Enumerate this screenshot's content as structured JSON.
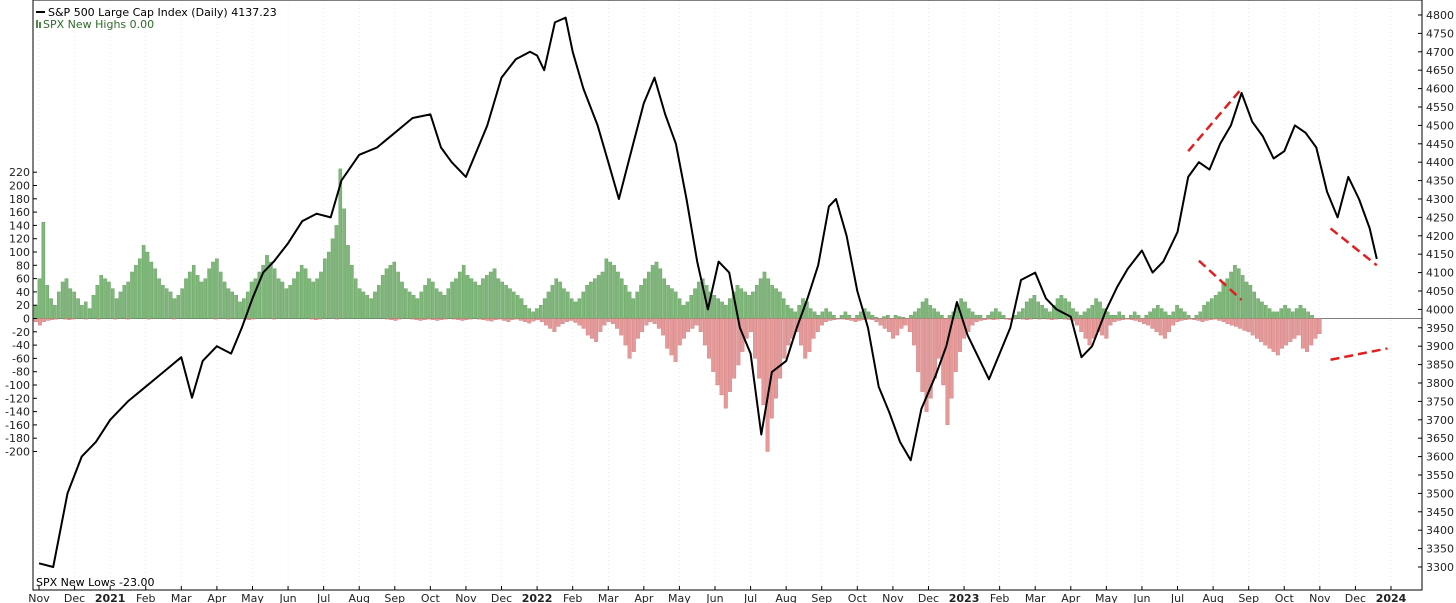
{
  "chart_data": {
    "type": "bar",
    "legend": {
      "spx_line": "S&P 500 Large Cap Index (Daily) 4137.23",
      "new_highs": "SPX New Highs 0.00",
      "new_lows": "SPX New Lows -23.00"
    },
    "colors": {
      "line": "#000000",
      "highs": "#7fb77a",
      "highs_dark": "#4f8d4a",
      "lows": "#e59a9a",
      "lows_dark": "#c46a6a",
      "annotation": "#e02020",
      "grid": "#d8d8d8"
    },
    "x_labels": [
      {
        "label": "Nov",
        "bold": false
      },
      {
        "label": "Dec",
        "bold": false
      },
      {
        "label": "2021",
        "bold": true
      },
      {
        "label": "Feb",
        "bold": false
      },
      {
        "label": "Mar",
        "bold": false
      },
      {
        "label": "Apr",
        "bold": false
      },
      {
        "label": "May",
        "bold": false
      },
      {
        "label": "Jun",
        "bold": false
      },
      {
        "label": "Jul",
        "bold": false
      },
      {
        "label": "Aug",
        "bold": false
      },
      {
        "label": "Sep",
        "bold": false
      },
      {
        "label": "Oct",
        "bold": false
      },
      {
        "label": "Nov",
        "bold": false
      },
      {
        "label": "Dec",
        "bold": false
      },
      {
        "label": "2022",
        "bold": true
      },
      {
        "label": "Feb",
        "bold": false
      },
      {
        "label": "Mar",
        "bold": false
      },
      {
        "label": "Apr",
        "bold": false
      },
      {
        "label": "May",
        "bold": false
      },
      {
        "label": "Jun",
        "bold": false
      },
      {
        "label": "Jul",
        "bold": false
      },
      {
        "label": "Aug",
        "bold": false
      },
      {
        "label": "Sep",
        "bold": false
      },
      {
        "label": "Oct",
        "bold": false
      },
      {
        "label": "Nov",
        "bold": false
      },
      {
        "label": "Dec",
        "bold": false
      },
      {
        "label": "2023",
        "bold": true
      },
      {
        "label": "Feb",
        "bold": false
      },
      {
        "label": "Mar",
        "bold": false
      },
      {
        "label": "Apr",
        "bold": false
      },
      {
        "label": "May",
        "bold": false
      },
      {
        "label": "Jun",
        "bold": false
      },
      {
        "label": "Jul",
        "bold": false
      },
      {
        "label": "Aug",
        "bold": false
      },
      {
        "label": "Sep",
        "bold": false
      },
      {
        "label": "Oct",
        "bold": false
      },
      {
        "label": "Nov",
        "bold": false
      },
      {
        "label": "Dec",
        "bold": false
      },
      {
        "label": "2024",
        "bold": true
      }
    ],
    "left_axis": {
      "ylim": [
        -200,
        225
      ],
      "ticks": [
        220,
        200,
        180,
        160,
        140,
        120,
        100,
        80,
        60,
        40,
        20,
        0,
        -20,
        -40,
        -60,
        -80,
        -100,
        -120,
        -140,
        -160,
        -180,
        -200
      ]
    },
    "right_axis": {
      "ylim": [
        3270,
        4800
      ],
      "ticks": [
        4800,
        4750,
        4700,
        4650,
        4600,
        4550,
        4500,
        4450,
        4400,
        4350,
        4300,
        4250,
        4200,
        4150,
        4100,
        4050,
        4000,
        3950,
        3900,
        3850,
        3800,
        3750,
        3700,
        3650,
        3600,
        3550,
        3500,
        3450,
        3400,
        3350,
        3300
      ]
    },
    "spx_series": {
      "name": "S&P 500 Large Cap Index (Daily)",
      "points": [
        [
          0,
          3310
        ],
        [
          0.4,
          3300
        ],
        [
          0.8,
          3500
        ],
        [
          1.2,
          3600
        ],
        [
          1.6,
          3640
        ],
        [
          2.0,
          3700
        ],
        [
          2.5,
          3750
        ],
        [
          3.0,
          3790
        ],
        [
          3.5,
          3830
        ],
        [
          4.0,
          3870
        ],
        [
          4.3,
          3760
        ],
        [
          4.6,
          3860
        ],
        [
          5.0,
          3900
        ],
        [
          5.4,
          3880
        ],
        [
          5.7,
          3950
        ],
        [
          6.0,
          4030
        ],
        [
          6.3,
          4100
        ],
        [
          6.6,
          4130
        ],
        [
          7.0,
          4180
        ],
        [
          7.4,
          4240
        ],
        [
          7.8,
          4260
        ],
        [
          8.2,
          4250
        ],
        [
          8.5,
          4350
        ],
        [
          9.0,
          4420
        ],
        [
          9.5,
          4440
        ],
        [
          10.0,
          4480
        ],
        [
          10.5,
          4520
        ],
        [
          11.0,
          4530
        ],
        [
          11.3,
          4440
        ],
        [
          11.6,
          4400
        ],
        [
          12.0,
          4360
        ],
        [
          12.3,
          4430
        ],
        [
          12.6,
          4500
        ],
        [
          13.0,
          4630
        ],
        [
          13.4,
          4680
        ],
        [
          13.8,
          4700
        ],
        [
          14.0,
          4690
        ],
        [
          14.2,
          4650
        ],
        [
          14.5,
          4780
        ],
        [
          14.8,
          4793
        ],
        [
          15.0,
          4700
        ],
        [
          15.3,
          4600
        ],
        [
          15.7,
          4500
        ],
        [
          16.0,
          4400
        ],
        [
          16.3,
          4300
        ],
        [
          16.7,
          4450
        ],
        [
          17.0,
          4560
        ],
        [
          17.3,
          4630
        ],
        [
          17.6,
          4530
        ],
        [
          17.9,
          4450
        ],
        [
          18.2,
          4300
        ],
        [
          18.5,
          4130
        ],
        [
          18.8,
          4000
        ],
        [
          19.1,
          4130
        ],
        [
          19.4,
          4100
        ],
        [
          19.7,
          3950
        ],
        [
          20.0,
          3880
        ],
        [
          20.3,
          3660
        ],
        [
          20.6,
          3830
        ],
        [
          21.0,
          3860
        ],
        [
          21.3,
          3950
        ],
        [
          21.6,
          4030
        ],
        [
          21.9,
          4120
        ],
        [
          22.2,
          4280
        ],
        [
          22.4,
          4300
        ],
        [
          22.7,
          4200
        ],
        [
          23.0,
          4050
        ],
        [
          23.3,
          3950
        ],
        [
          23.6,
          3790
        ],
        [
          23.9,
          3720
        ],
        [
          24.2,
          3640
        ],
        [
          24.5,
          3590
        ],
        [
          24.8,
          3730
        ],
        [
          25.2,
          3820
        ],
        [
          25.5,
          3900
        ],
        [
          25.8,
          4020
        ],
        [
          26.1,
          3930
        ],
        [
          26.4,
          3870
        ],
        [
          26.7,
          3810
        ],
        [
          27.0,
          3880
        ],
        [
          27.3,
          3950
        ],
        [
          27.6,
          4080
        ],
        [
          28.0,
          4100
        ],
        [
          28.3,
          4030
        ],
        [
          28.6,
          4000
        ],
        [
          29.0,
          3980
        ],
        [
          29.3,
          3870
        ],
        [
          29.6,
          3900
        ],
        [
          30.0,
          4000
        ],
        [
          30.3,
          4060
        ],
        [
          30.6,
          4110
        ],
        [
          31.0,
          4160
        ],
        [
          31.3,
          4100
        ],
        [
          31.6,
          4130
        ],
        [
          32.0,
          4210
        ],
        [
          32.3,
          4360
        ],
        [
          32.6,
          4400
        ],
        [
          32.9,
          4380
        ],
        [
          33.2,
          4450
        ],
        [
          33.5,
          4500
        ],
        [
          33.8,
          4588
        ],
        [
          34.1,
          4510
        ],
        [
          34.4,
          4470
        ],
        [
          34.7,
          4410
        ],
        [
          35.0,
          4430
        ],
        [
          35.3,
          4500
        ],
        [
          35.6,
          4480
        ],
        [
          35.9,
          4440
        ],
        [
          36.2,
          4320
        ],
        [
          36.5,
          4250
        ],
        [
          36.8,
          4360
        ],
        [
          37.1,
          4300
        ],
        [
          37.4,
          4220
        ],
        [
          37.6,
          4137
        ]
      ]
    },
    "new_highs_values": [
      20,
      60,
      145,
      50,
      30,
      20,
      40,
      55,
      60,
      45,
      40,
      30,
      20,
      25,
      15,
      35,
      50,
      65,
      60,
      55,
      45,
      30,
      40,
      50,
      55,
      70,
      80,
      90,
      110,
      100,
      85,
      75,
      60,
      50,
      45,
      40,
      30,
      35,
      45,
      60,
      70,
      80,
      65,
      55,
      60,
      75,
      85,
      90,
      70,
      55,
      45,
      40,
      35,
      25,
      30,
      40,
      55,
      60,
      70,
      80,
      95,
      85,
      75,
      60,
      55,
      45,
      50,
      60,
      70,
      80,
      75,
      60,
      55,
      60,
      70,
      90,
      100,
      120,
      140,
      225,
      165,
      110,
      80,
      60,
      45,
      40,
      35,
      30,
      40,
      50,
      65,
      75,
      80,
      85,
      70,
      55,
      45,
      40,
      35,
      30,
      40,
      50,
      60,
      55,
      45,
      40,
      35,
      45,
      55,
      60,
      70,
      80,
      65,
      60,
      55,
      50,
      60,
      65,
      70,
      75,
      60,
      55,
      50,
      45,
      40,
      35,
      30,
      20,
      15,
      10,
      15,
      20,
      30,
      40,
      50,
      60,
      55,
      45,
      40,
      30,
      25,
      30,
      40,
      50,
      55,
      60,
      65,
      70,
      90,
      85,
      80,
      70,
      60,
      50,
      40,
      30,
      40,
      50,
      60,
      70,
      80,
      85,
      75,
      60,
      50,
      45,
      40,
      30,
      20,
      25,
      35,
      45,
      55,
      60,
      50,
      40,
      35,
      30,
      25,
      20,
      30,
      40,
      50,
      45,
      40,
      35,
      40,
      50,
      60,
      70,
      60,
      50,
      45,
      40,
      30,
      20,
      15,
      10,
      20,
      30,
      25,
      15,
      10,
      5,
      10,
      15,
      10,
      5,
      0,
      5,
      10,
      5,
      0,
      5,
      10,
      15,
      10,
      5,
      2,
      0,
      3,
      5,
      0,
      5,
      3,
      2,
      0,
      5,
      10,
      15,
      25,
      30,
      20,
      15,
      10,
      5,
      0,
      5,
      10,
      20,
      30,
      25,
      15,
      10,
      5,
      5,
      0,
      5,
      10,
      15,
      10,
      5,
      0,
      0,
      5,
      10,
      15,
      25,
      30,
      35,
      25,
      20,
      15,
      10,
      20,
      30,
      35,
      30,
      25,
      15,
      10,
      5,
      10,
      15,
      20,
      30,
      25,
      15,
      10,
      5,
      5,
      10,
      5,
      0,
      5,
      10,
      5,
      0,
      5,
      10,
      15,
      20,
      15,
      10,
      5,
      10,
      20,
      15,
      10,
      5,
      0,
      5,
      10,
      20,
      25,
      30,
      35,
      40,
      55,
      60,
      70,
      80,
      75,
      65,
      55,
      50,
      40,
      30,
      25,
      20,
      15,
      10,
      10,
      15,
      20,
      15,
      10,
      15,
      20,
      15,
      10,
      5,
      0,
      0
    ],
    "new_lows_values": [
      -5,
      -10,
      -5,
      -3,
      -2,
      -1,
      0,
      -1,
      -2,
      -1,
      0,
      0,
      -1,
      0,
      0,
      -1,
      0,
      0,
      0,
      -1,
      0,
      0,
      -1,
      0,
      0,
      0,
      0,
      -1,
      0,
      0,
      0,
      0,
      0,
      -1,
      0,
      0,
      0,
      0,
      0,
      0,
      0,
      0,
      0,
      -1,
      0,
      0,
      -1,
      0,
      0,
      0,
      -1,
      -2,
      -1,
      0,
      0,
      0,
      0,
      -1,
      0,
      0,
      0,
      0,
      0,
      0,
      0,
      0,
      -1,
      -2,
      -1,
      0,
      0,
      0,
      -1,
      0,
      0,
      0,
      0,
      0,
      0,
      0,
      0,
      0,
      0,
      0,
      -1,
      -2,
      -3,
      -1,
      0,
      0,
      -1,
      -2,
      -3,
      -2,
      -1,
      -2,
      -3,
      -2,
      -1,
      0,
      -1,
      -2,
      -3,
      -2,
      -1,
      0,
      -1,
      -2,
      -3,
      -4,
      -2,
      -1,
      -3,
      -5,
      -2,
      -1,
      -3,
      -5,
      -7,
      -4,
      -2,
      -5,
      -10,
      -15,
      -20,
      -12,
      -8,
      -5,
      -3,
      -6,
      -10,
      -15,
      -25,
      -30,
      -35,
      -20,
      -10,
      -5,
      -8,
      -15,
      -25,
      -40,
      -60,
      -50,
      -30,
      -20,
      -10,
      -5,
      -8,
      -15,
      -25,
      -45,
      -55,
      -65,
      -40,
      -30,
      -20,
      -15,
      -10,
      -20,
      -40,
      -60,
      -80,
      -100,
      -115,
      -135,
      -110,
      -90,
      -70,
      -50,
      -30,
      -20,
      -60,
      -90,
      -130,
      -200,
      -150,
      -120,
      -90,
      -60,
      -40,
      -30,
      -20,
      -40,
      -60,
      -50,
      -30,
      -20,
      -10,
      -5,
      -3,
      -2,
      -1,
      -1,
      -2,
      -3,
      -5,
      -3,
      -2,
      -1,
      -2,
      -5,
      -10,
      -15,
      -20,
      -30,
      -25,
      -15,
      -10,
      -20,
      -40,
      -80,
      -110,
      -140,
      -120,
      -90,
      -60,
      -100,
      -160,
      -120,
      -80,
      -50,
      -30,
      -20,
      -10,
      -5,
      -3,
      -2,
      -1,
      -2,
      -1,
      0,
      -1,
      -2,
      -1,
      0,
      -1,
      -2,
      -1,
      0,
      -1,
      0,
      -1,
      -2,
      -1,
      0,
      -1,
      -2,
      -4,
      -10,
      -20,
      -30,
      -40,
      -30,
      -20,
      -25,
      -30,
      -10,
      -5,
      -3,
      -2,
      -1,
      -2,
      -3,
      -5,
      -8,
      -10,
      -15,
      -20,
      -25,
      -30,
      -20,
      -10,
      -5,
      -3,
      -2,
      -1,
      -2,
      -3,
      -5,
      -3,
      -2,
      -1,
      -3,
      -5,
      -8,
      -10,
      -12,
      -15,
      -18,
      -20,
      -25,
      -30,
      -35,
      -40,
      -45,
      -50,
      -55,
      -45,
      -40,
      -35,
      -30,
      -25,
      -45,
      -50,
      -40,
      -30,
      -23
    ],
    "annotations": [
      {
        "name": "price-rising-trend",
        "from": [
          32.3,
          4430
        ],
        "to": [
          33.8,
          4600
        ],
        "axis": "right"
      },
      {
        "name": "price-falling-trend",
        "from": [
          36.3,
          4220
        ],
        "to": [
          37.6,
          4120
        ],
        "axis": "right"
      },
      {
        "name": "highs-falling-trend",
        "from": [
          32.6,
          87
        ],
        "to": [
          33.8,
          28
        ],
        "axis": "left"
      },
      {
        "name": "lows-rising-trend",
        "from": [
          36.3,
          -62
        ],
        "to": [
          37.9,
          -45
        ],
        "axis": "left"
      }
    ]
  }
}
